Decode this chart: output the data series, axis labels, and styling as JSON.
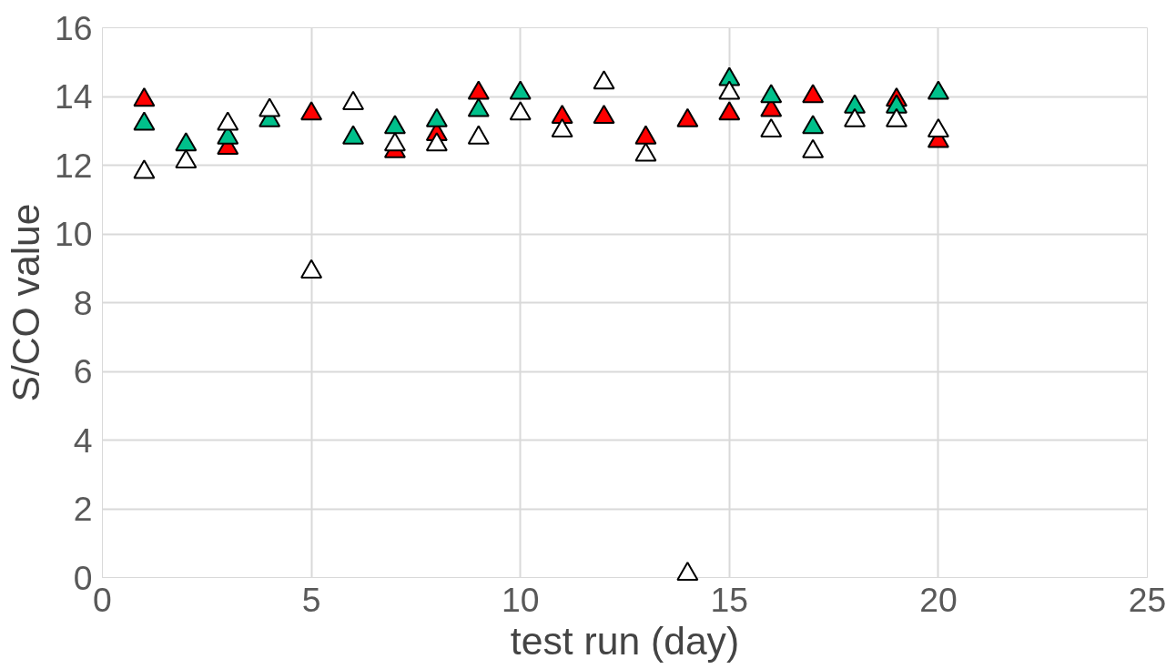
{
  "chart_data": {
    "type": "scatter",
    "xlabel": "test run (day)",
    "ylabel": "S/CO value",
    "x": [
      1,
      2,
      3,
      4,
      5,
      6,
      7,
      8,
      9,
      10,
      11,
      12,
      13,
      14,
      15,
      16,
      17,
      18,
      19,
      20
    ],
    "series": [
      {
        "color": "#ff0000",
        "values": [
          13.9,
          null,
          12.5,
          null,
          13.5,
          null,
          12.4,
          12.9,
          14.1,
          null,
          13.4,
          13.4,
          12.8,
          13.3,
          13.5,
          13.6,
          14.0,
          null,
          13.9,
          12.7
        ]
      },
      {
        "color": "#00c08b",
        "values": [
          13.2,
          12.6,
          12.8,
          13.3,
          null,
          12.8,
          13.1,
          13.3,
          13.6,
          14.1,
          null,
          null,
          null,
          null,
          14.5,
          14.0,
          13.1,
          13.7,
          13.7,
          14.1
        ]
      },
      {
        "color": "#ffffff",
        "values": [
          11.8,
          12.1,
          13.2,
          13.6,
          8.9,
          13.8,
          12.6,
          12.6,
          12.8,
          13.5,
          13.0,
          14.4,
          12.3,
          0.1,
          14.1,
          13.0,
          12.4,
          13.3,
          13.3,
          13.0
        ]
      }
    ],
    "xlim": [
      0,
      25
    ],
    "xticks": [
      0,
      5,
      10,
      15,
      20,
      25
    ],
    "ylim": [
      0,
      16
    ],
    "yticks": [
      0,
      2,
      4,
      6,
      8,
      10,
      12,
      14,
      16
    ],
    "grid": true,
    "marker": "triangle"
  }
}
